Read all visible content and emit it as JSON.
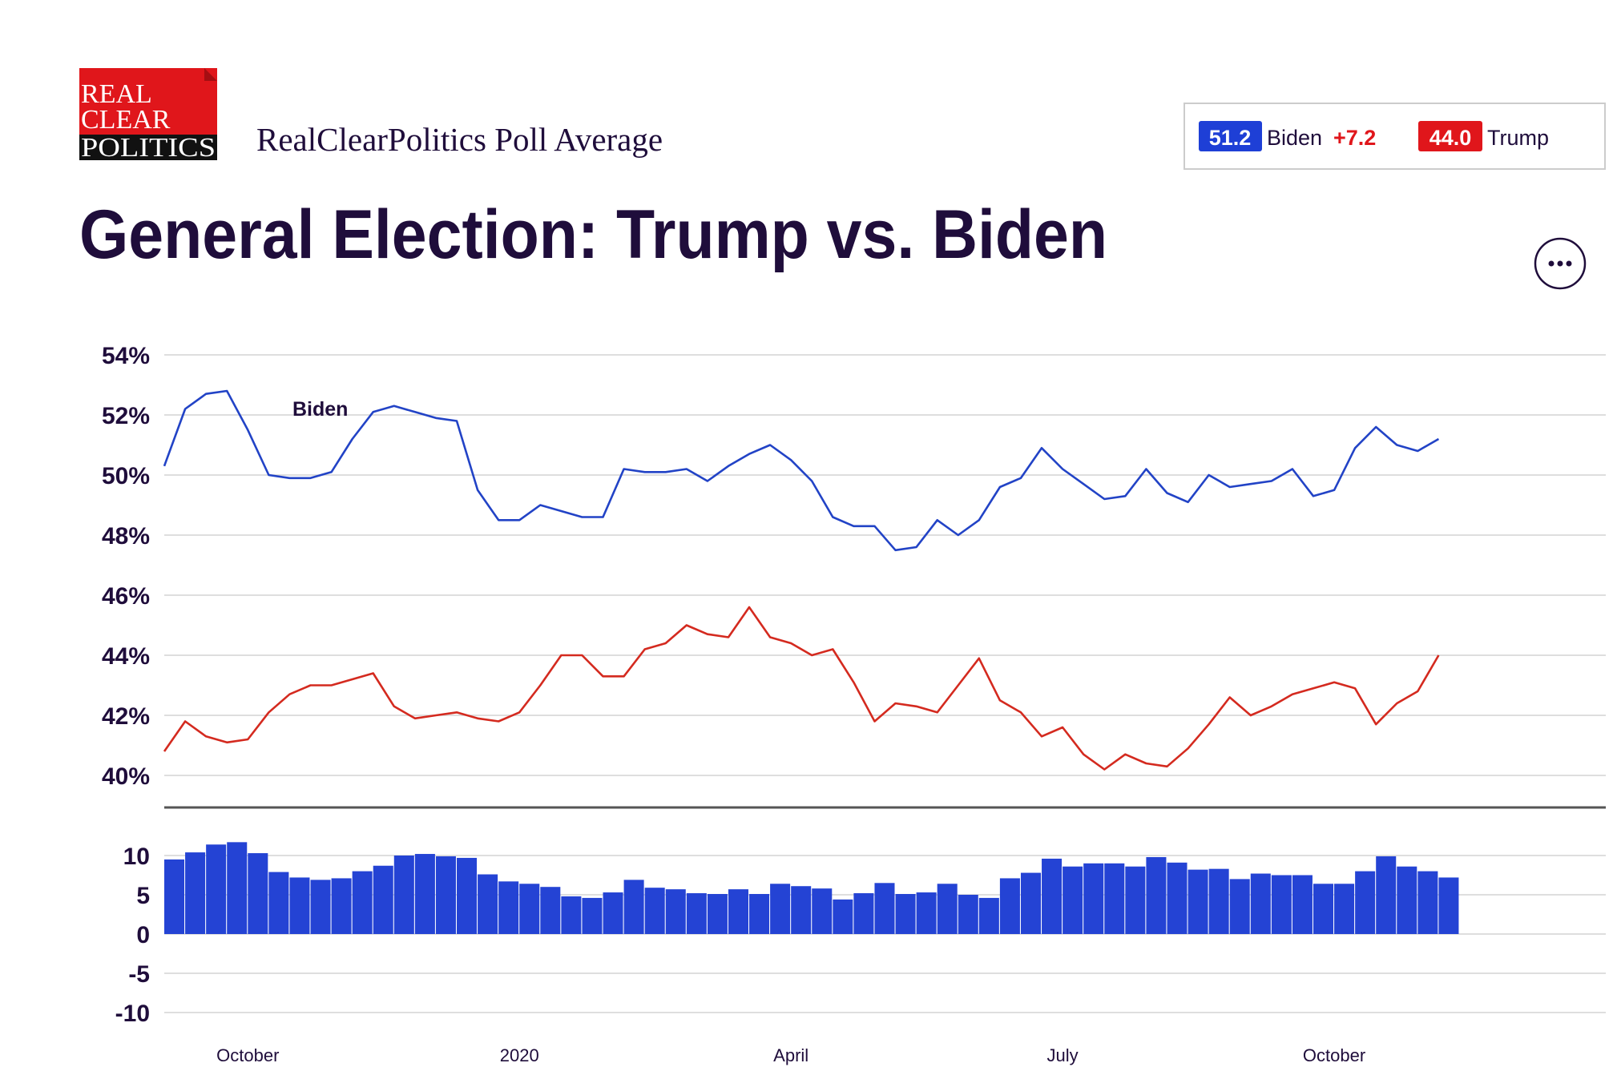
{
  "header": {
    "logo": [
      "REAL",
      "CLEAR",
      "POLITICS"
    ],
    "subtitle": "RealClearPolitics Poll Average",
    "legend": [
      {
        "value": "51.2",
        "spread": "+7.2"
      },
      {
        "value": "44.0"
      }
    ]
  },
  "chart_data": [
    {
      "type": "line",
      "title": "General Election: Trump vs. Biden",
      "categories": [
        null,
        null,
        null,
        null,
        "October",
        null,
        null,
        null,
        null,
        null,
        null,
        null,
        null,
        null,
        null,
        null,
        null,
        "2020",
        null,
        null,
        null,
        null,
        null,
        null,
        null,
        null,
        null,
        null,
        null,
        null,
        "April",
        null,
        null,
        null,
        null,
        null,
        null,
        null,
        null,
        null,
        null,
        null,
        null,
        "July",
        null,
        null,
        null,
        null,
        null,
        null,
        null,
        null,
        null,
        null,
        null,
        null,
        "October",
        null,
        null,
        null,
        null,
        null,
        null,
        null,
        null,
        null,
        null,
        null,
        null,
        null
      ],
      "series": [
        {
          "name": "Biden",
          "color": "#2243c6",
          "values": [
            50.3,
            52.2,
            52.7,
            52.8,
            51.5,
            50.0,
            49.9,
            49.9,
            50.1,
            51.2,
            52.1,
            52.3,
            52.1,
            51.9,
            51.8,
            49.5,
            48.5,
            48.5,
            49.0,
            48.8,
            48.6,
            48.6,
            50.2,
            50.1,
            50.1,
            50.2,
            49.8,
            50.3,
            50.7,
            51.0,
            50.5,
            49.8,
            48.6,
            48.3,
            48.3,
            47.5,
            47.6,
            48.5,
            48.0,
            48.5,
            49.6,
            49.9,
            50.9,
            50.2,
            49.7,
            49.2,
            49.3,
            50.2,
            49.4,
            49.1,
            50.0,
            49.6,
            49.7,
            49.8,
            50.2,
            49.3,
            49.5,
            50.9,
            51.6,
            51.0,
            50.8,
            51.2,
            null,
            null,
            null,
            null,
            null,
            null,
            null,
            null
          ]
        },
        {
          "name": "Trump",
          "color": "#d42a1f",
          "values": [
            40.8,
            41.8,
            41.3,
            41.1,
            41.2,
            42.1,
            42.7,
            43.0,
            43.0,
            43.2,
            43.4,
            42.3,
            41.9,
            42.0,
            42.1,
            41.9,
            41.8,
            42.1,
            43.0,
            44.0,
            44.0,
            43.3,
            43.3,
            44.2,
            44.4,
            45.0,
            44.7,
            44.6,
            45.6,
            44.6,
            44.4,
            44.0,
            44.2,
            43.1,
            41.8,
            42.4,
            42.3,
            42.1,
            43.0,
            43.9,
            42.5,
            42.1,
            41.3,
            41.6,
            40.7,
            40.2,
            40.7,
            40.4,
            40.3,
            40.9,
            41.7,
            42.6,
            42.0,
            42.3,
            42.7,
            42.9,
            43.1,
            42.9,
            41.7,
            42.4,
            42.8,
            44.0,
            null,
            null,
            null,
            null,
            null,
            null,
            null,
            null
          ]
        }
      ],
      "annotations": [
        {
          "text": "Biden"
        }
      ],
      "ylim": [
        40,
        54
      ],
      "yticks": [
        {
          "value": 54,
          "label": "54%"
        },
        {
          "value": 52,
          "label": "52%"
        },
        {
          "value": 50,
          "label": "50%"
        },
        {
          "value": 48,
          "label": "48%"
        },
        {
          "value": 46,
          "label": "46%"
        },
        {
          "value": 44,
          "label": "44%"
        },
        {
          "value": 42,
          "label": "42%"
        },
        {
          "value": 40,
          "label": "40%"
        }
      ],
      "grid": true
    },
    {
      "type": "bar",
      "color": "#2443d4",
      "values": [
        9.5,
        10.4,
        11.4,
        11.7,
        10.3,
        7.9,
        7.2,
        6.9,
        7.1,
        8.0,
        8.7,
        10.0,
        10.2,
        9.9,
        9.7,
        7.6,
        6.7,
        6.4,
        6.0,
        4.8,
        4.6,
        5.3,
        6.9,
        5.9,
        5.7,
        5.2,
        5.1,
        5.7,
        5.1,
        6.4,
        6.1,
        5.8,
        4.4,
        5.2,
        6.5,
        5.1,
        5.3,
        6.4,
        5.0,
        4.6,
        7.1,
        7.8,
        9.6,
        8.6,
        9.0,
        9.0,
        8.6,
        9.8,
        9.1,
        8.2,
        8.3,
        7.0,
        7.7,
        7.5,
        7.5,
        6.4,
        6.4,
        8.0,
        9.9,
        8.6,
        8.0,
        7.2,
        null,
        null,
        null,
        null,
        null,
        null,
        null,
        null
      ],
      "ylim": [
        -10,
        10
      ],
      "yticks": [
        10,
        5,
        0,
        -5,
        -10
      ],
      "grid": true
    }
  ]
}
